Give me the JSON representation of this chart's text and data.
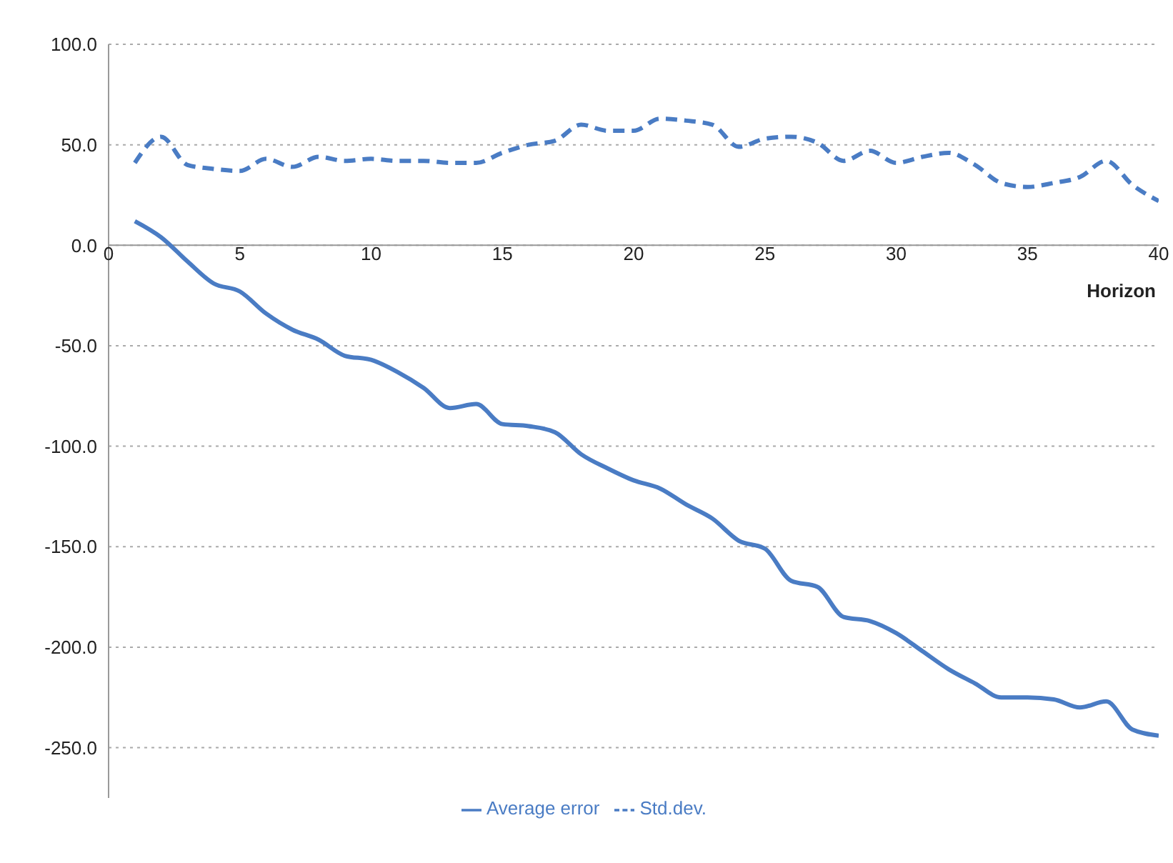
{
  "chart_data": {
    "type": "line",
    "xlabel": "Horizon",
    "x": [
      1,
      2,
      3,
      4,
      5,
      6,
      7,
      8,
      9,
      10,
      11,
      12,
      13,
      14,
      15,
      16,
      17,
      18,
      19,
      20,
      21,
      22,
      23,
      24,
      25,
      26,
      27,
      28,
      29,
      30,
      31,
      32,
      33,
      34,
      35,
      36,
      37,
      38,
      39,
      40
    ],
    "series": [
      {
        "name": "Average error",
        "color": "#4a7cc4",
        "line_style": "solid",
        "values": [
          12,
          4,
          -8,
          -19,
          -23,
          -34,
          -42,
          -47,
          -55,
          -57,
          -63,
          -71,
          -81,
          -79,
          -89,
          -90,
          -93,
          -104,
          -111,
          -117,
          -121,
          -129,
          -136,
          -147,
          -151,
          -167,
          -170,
          -185,
          -187,
          -193,
          -202,
          -211,
          -218,
          -225,
          -225,
          -226,
          -230,
          -227,
          -241,
          -244
        ]
      },
      {
        "name": "Std.dev.",
        "color": "#4a7cc4",
        "line_style": "dashed",
        "values": [
          41,
          54,
          40,
          38,
          37,
          43,
          39,
          44,
          42,
          43,
          42,
          42,
          41,
          41,
          46,
          50,
          52,
          60,
          57,
          57,
          63,
          62,
          60,
          49,
          53,
          54,
          51,
          42,
          47,
          41,
          44,
          46,
          40,
          31,
          29,
          31,
          34,
          42,
          30,
          22
        ]
      }
    ],
    "xlim": [
      0,
      40
    ],
    "xticks": [
      0,
      5,
      10,
      15,
      20,
      25,
      30,
      35,
      40
    ],
    "ylim": [
      -275,
      100
    ],
    "yticks": [
      {
        "value": 100,
        "label": "100.0"
      },
      {
        "value": 50,
        "label": "50.0"
      },
      {
        "value": 0,
        "label": "0.0"
      },
      {
        "value": -50,
        "label": "-50.0"
      },
      {
        "value": -100,
        "label": "-100.0"
      },
      {
        "value": -150,
        "label": "-150.0"
      },
      {
        "value": -200,
        "label": "-200.0"
      },
      {
        "value": -250,
        "label": "-250.0"
      }
    ],
    "grid": "y",
    "legend": "bottom",
    "marker": "none"
  }
}
